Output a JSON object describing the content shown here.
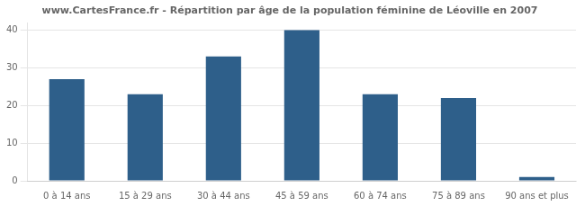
{
  "chart_data": {
    "type": "bar",
    "title": "www.CartesFrance.fr - Répartition par âge de la population féminine de Léoville en 2007",
    "categories": [
      "0 à 14 ans",
      "15 à 29 ans",
      "30 à 44 ans",
      "45 à 59 ans",
      "60 à 74 ans",
      "75 à 89 ans",
      "90 ans et plus"
    ],
    "values": [
      27,
      23,
      33,
      40,
      23,
      22,
      1
    ],
    "color": "#2e5f8a",
    "ylim": [
      0,
      42
    ],
    "yticks": [
      0,
      10,
      20,
      30,
      40
    ],
    "grid": true
  }
}
